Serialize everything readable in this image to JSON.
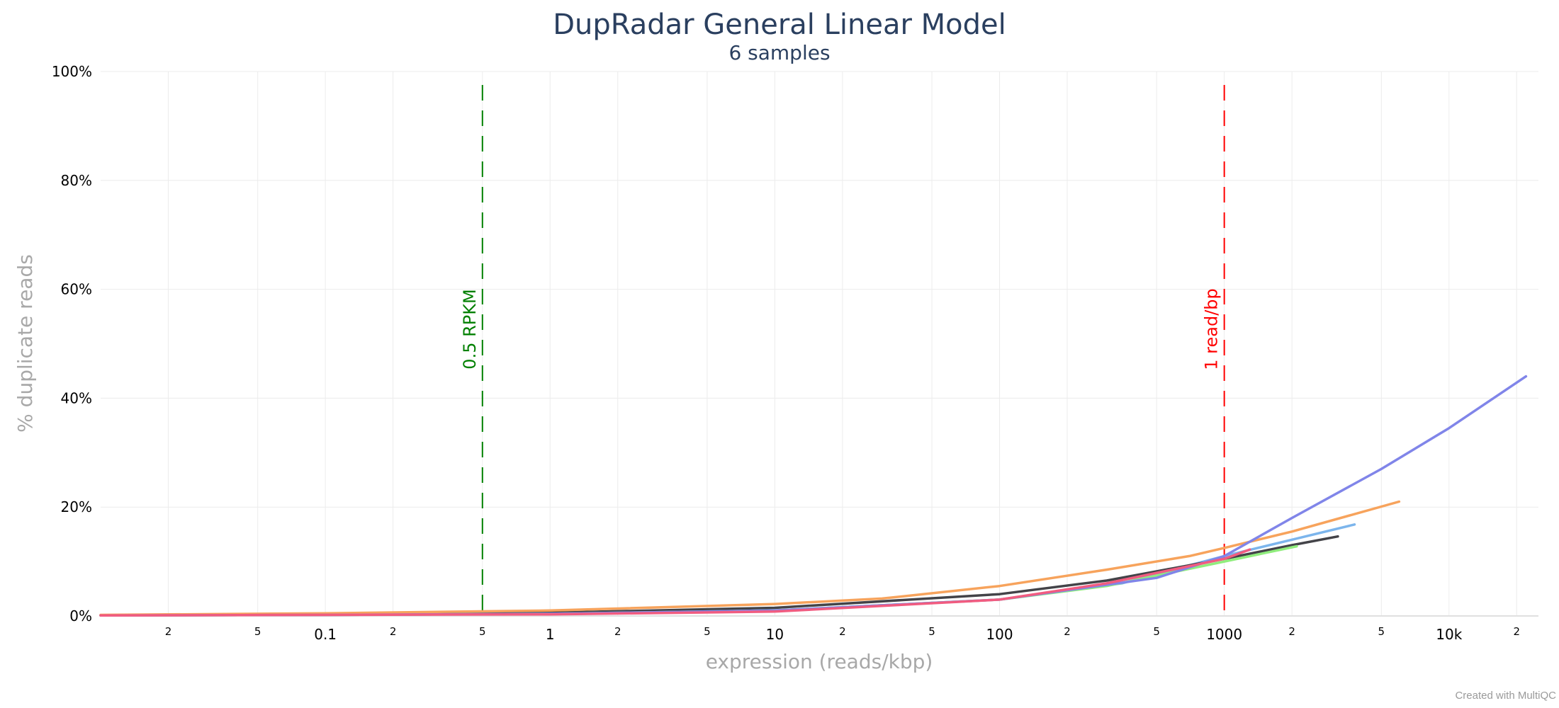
{
  "chart_data": {
    "type": "line",
    "title": "DupRadar General Linear Model",
    "subtitle": "6 samples",
    "xlabel": "expression (reads/kbp)",
    "ylabel": "% duplicate reads",
    "x_scale": "log",
    "xlim": [
      0.01,
      25000
    ],
    "ylim": [
      0,
      100
    ],
    "grid": true,
    "legend": "none",
    "x_major_ticks": [
      {
        "value": 0.1,
        "label": "0.1"
      },
      {
        "value": 1,
        "label": "1"
      },
      {
        "value": 10,
        "label": "10"
      },
      {
        "value": 100,
        "label": "100"
      },
      {
        "value": 1000,
        "label": "1000"
      },
      {
        "value": 10000,
        "label": "10k"
      }
    ],
    "x_minor_ticks": [
      {
        "value": 0.02,
        "label": "2"
      },
      {
        "value": 0.05,
        "label": "5"
      },
      {
        "value": 0.2,
        "label": "2"
      },
      {
        "value": 0.5,
        "label": "5"
      },
      {
        "value": 2,
        "label": "2"
      },
      {
        "value": 5,
        "label": "5"
      },
      {
        "value": 20,
        "label": "2"
      },
      {
        "value": 50,
        "label": "5"
      },
      {
        "value": 200,
        "label": "2"
      },
      {
        "value": 500,
        "label": "5"
      },
      {
        "value": 2000,
        "label": "2"
      },
      {
        "value": 5000,
        "label": "5"
      },
      {
        "value": 20000,
        "label": "2"
      }
    ],
    "y_ticks": [
      {
        "value": 0,
        "label": "0%"
      },
      {
        "value": 20,
        "label": "20%"
      },
      {
        "value": 40,
        "label": "40%"
      },
      {
        "value": 60,
        "label": "60%"
      },
      {
        "value": 80,
        "label": "80%"
      },
      {
        "value": 100,
        "label": "100%"
      }
    ],
    "reference_lines": [
      {
        "x": 0.5,
        "label": "0.5 RPKM",
        "color": "#008000"
      },
      {
        "x": 1000,
        "label": "1 read/bp",
        "color": "#ff0000"
      }
    ],
    "series": [
      {
        "color": "#7cb5ec",
        "x": [
          0.01,
          0.1,
          1,
          10,
          100,
          350,
          1000,
          2000,
          3800
        ],
        "y": [
          0.1,
          0.2,
          0.4,
          1.0,
          3.0,
          6.0,
          11.0,
          14.0,
          16.8
        ]
      },
      {
        "color": "#434348",
        "x": [
          0.01,
          0.1,
          1,
          10,
          100,
          300,
          1000,
          2000,
          3200
        ],
        "y": [
          0.1,
          0.3,
          0.6,
          1.5,
          4.0,
          6.5,
          10.5,
          13.0,
          14.6
        ]
      },
      {
        "color": "#90ed7d",
        "x": [
          0.01,
          0.1,
          1,
          10,
          100,
          300,
          1000,
          2100
        ],
        "y": [
          0.1,
          0.2,
          0.4,
          1.0,
          3.0,
          5.5,
          10.0,
          12.8
        ]
      },
      {
        "color": "#f7a35c",
        "x": [
          0.01,
          0.1,
          1,
          10,
          30,
          100,
          300,
          700,
          1000,
          2000,
          6000
        ],
        "y": [
          0.2,
          0.5,
          1.0,
          2.2,
          3.2,
          5.5,
          8.5,
          11.0,
          12.5,
          15.5,
          21.0
        ]
      },
      {
        "color": "#8085e9",
        "x": [
          0.01,
          0.1,
          1,
          10,
          100,
          500,
          1000,
          2000,
          5000,
          10000,
          22000
        ],
        "y": [
          0.1,
          0.2,
          0.4,
          1.0,
          3.0,
          7.0,
          11.0,
          18.0,
          27.0,
          34.5,
          44.0
        ]
      },
      {
        "color": "#f15c80",
        "x": [
          0.01,
          0.1,
          1,
          10,
          100,
          300,
          1000,
          1300
        ],
        "y": [
          0.1,
          0.2,
          0.3,
          0.8,
          3.0,
          6.0,
          10.5,
          12.2
        ]
      }
    ]
  },
  "credit": "Created with MultiQC"
}
